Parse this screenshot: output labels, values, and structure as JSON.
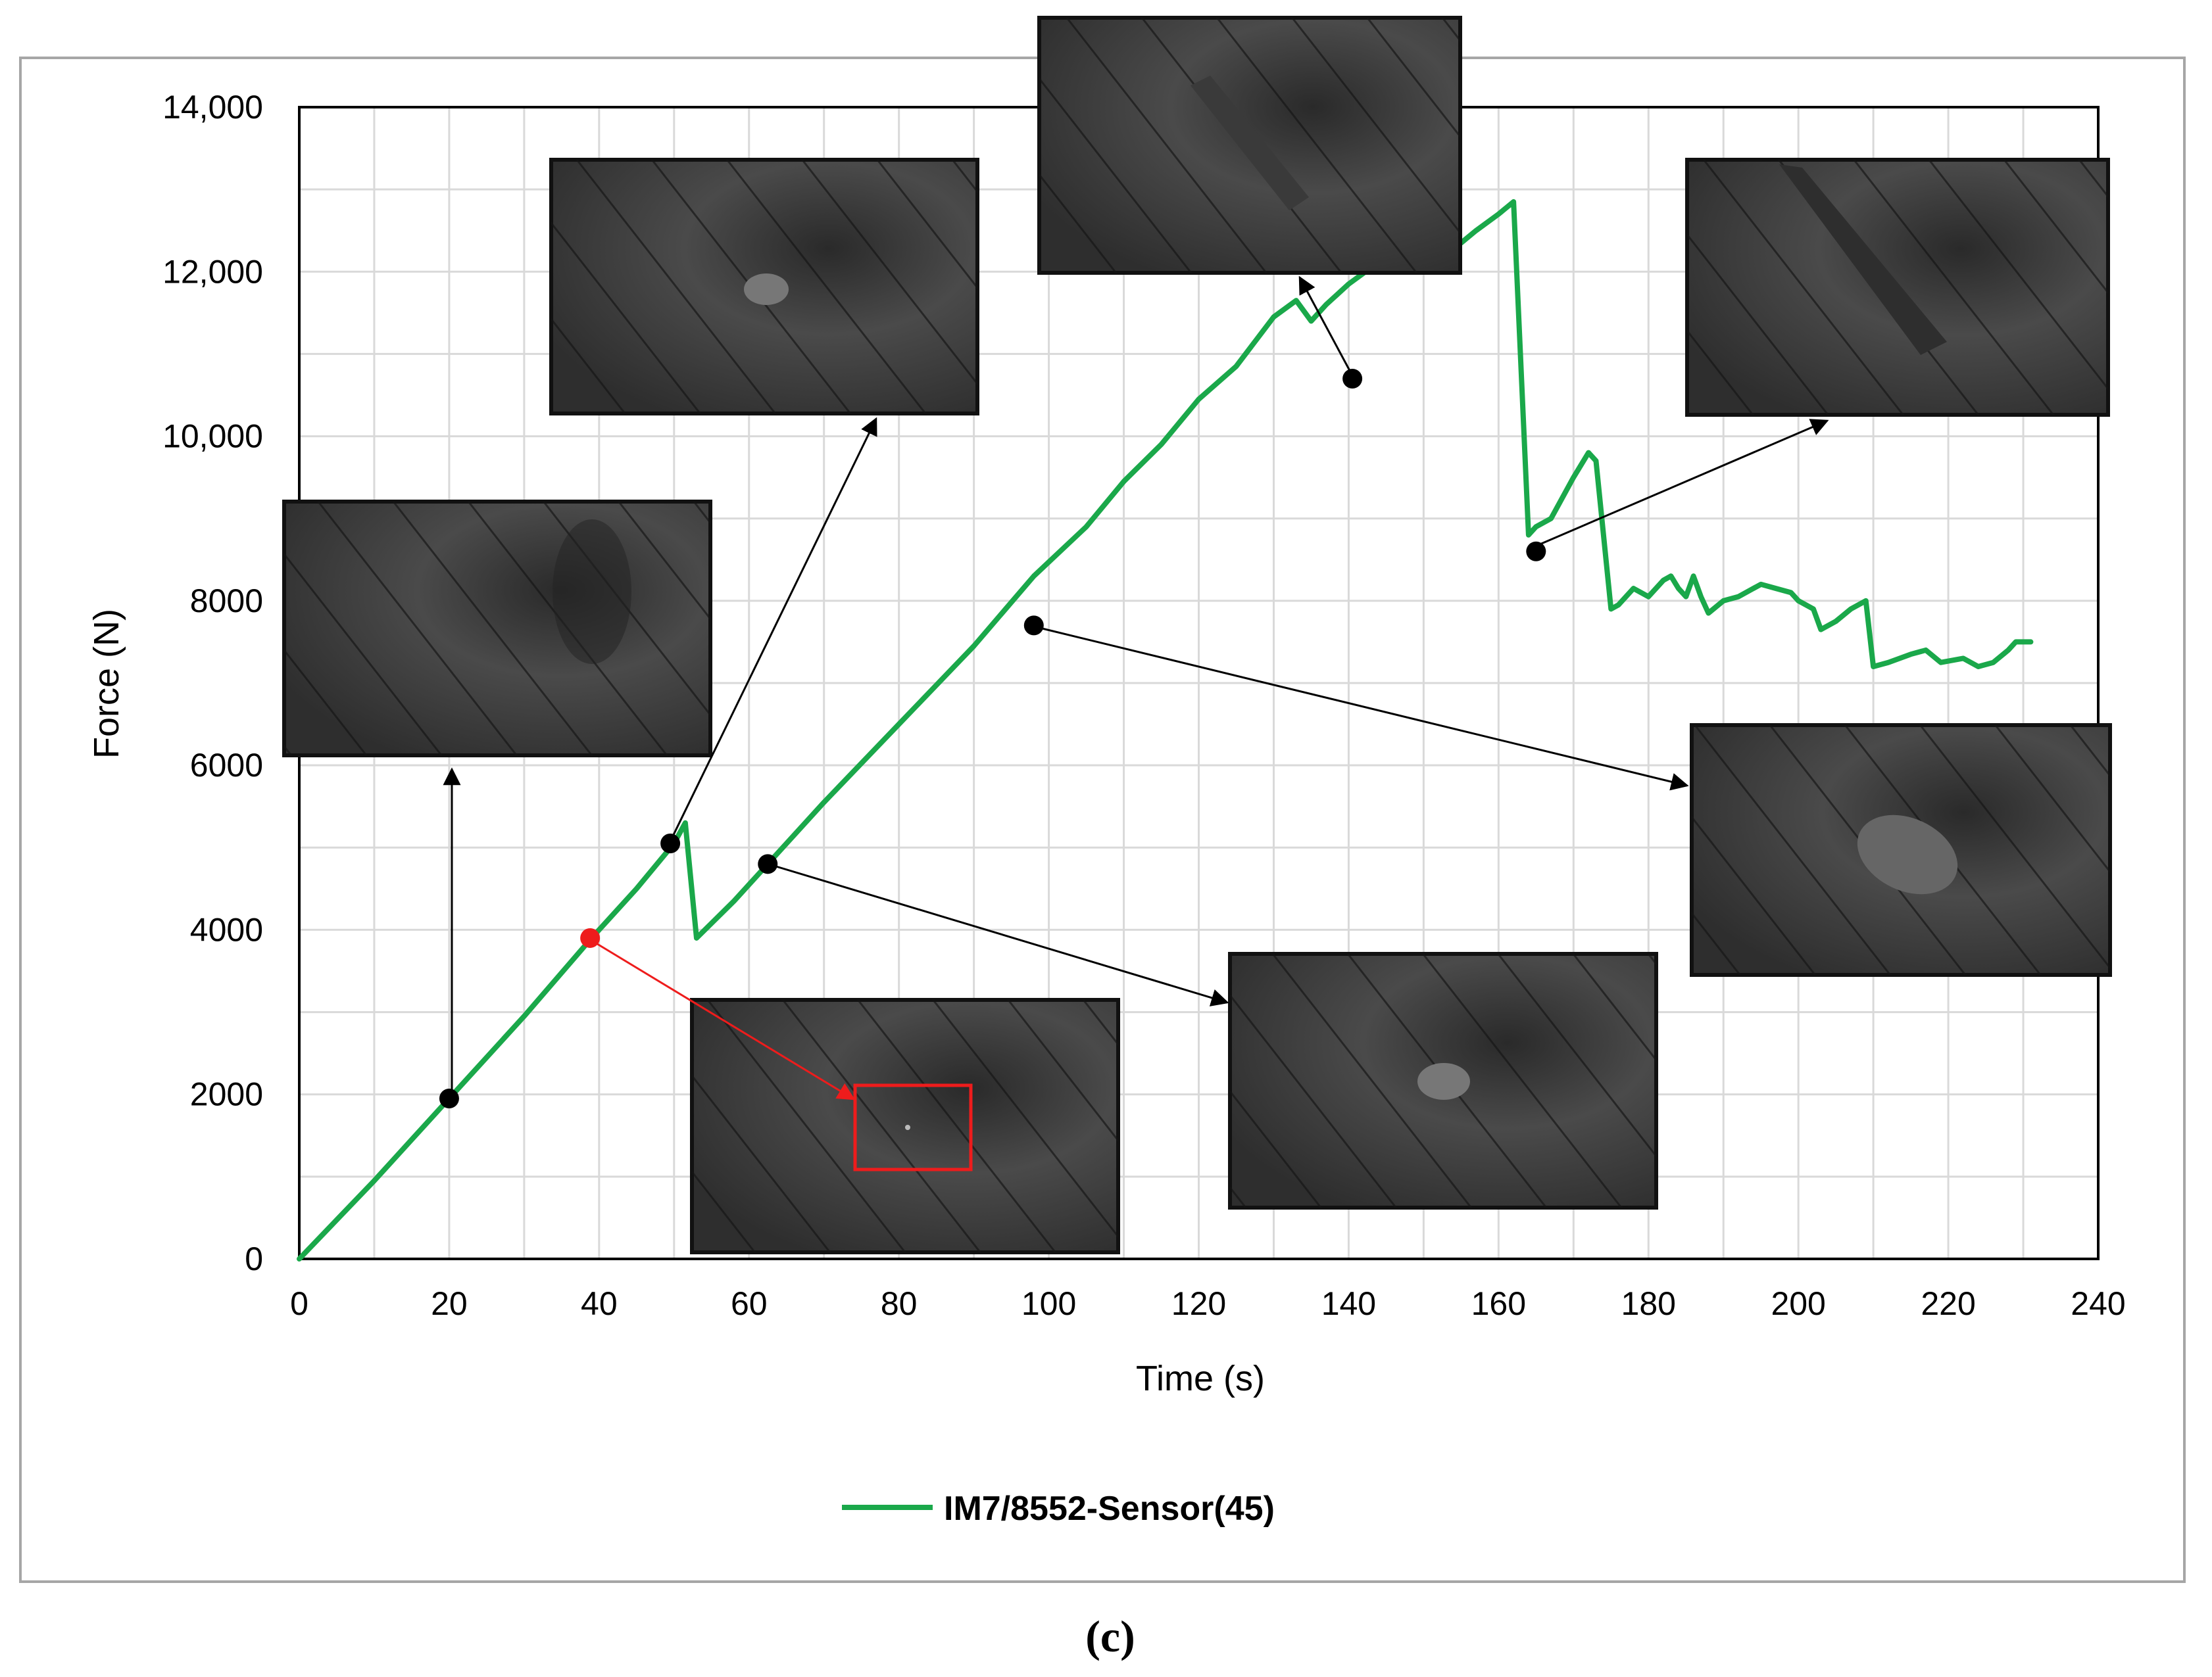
{
  "figure": {
    "panel_label": "(c)"
  },
  "colors": {
    "series": "#1aa84a",
    "marker": "#000000",
    "highlight": "#ee1c1c",
    "grid": "#d9d9d9",
    "axis": "#000000",
    "frame": "#a6a6a6",
    "photo_dark": "#1e1e1e",
    "photo_mid": "#3a3a3a"
  },
  "chart_data": {
    "type": "line",
    "title": "",
    "xlabel": "Time (s)",
    "ylabel": "Force (N)",
    "xlim": [
      0,
      240
    ],
    "ylim": [
      0,
      14000
    ],
    "x_ticks": [
      0,
      20,
      40,
      60,
      80,
      100,
      120,
      140,
      160,
      180,
      200,
      220,
      240
    ],
    "x_tick_labels": [
      "0",
      "20",
      "40",
      "60",
      "80",
      "100",
      "120",
      "140",
      "160",
      "180",
      "200",
      "220",
      "240"
    ],
    "y_ticks": [
      0,
      2000,
      4000,
      6000,
      8000,
      10000,
      12000,
      14000
    ],
    "y_tick_labels": [
      "0",
      "2000",
      "4000",
      "6000",
      "8000",
      "10,000",
      "12,000",
      "14,000"
    ],
    "grid": true,
    "legend_position": "bottom-center",
    "series": [
      {
        "name": "IM7/8552-Sensor(45)",
        "x": [
          0,
          10,
          20,
          30,
          39,
          45,
          50,
          51.5,
          53,
          58,
          62.5,
          70,
          80,
          90,
          98,
          105,
          110,
          115,
          120,
          125,
          130,
          133,
          135,
          137,
          140,
          143,
          145,
          150,
          153,
          155,
          157,
          160,
          162,
          164,
          165,
          167,
          170,
          172,
          173,
          175,
          176,
          178,
          180,
          182,
          183,
          184,
          185,
          186,
          187,
          188,
          190,
          192,
          195,
          197,
          199,
          200,
          202,
          203,
          205,
          207,
          209,
          210,
          212,
          215,
          217,
          219,
          222,
          224,
          226,
          228,
          229,
          231
        ],
        "y": [
          0,
          950,
          1950,
          2950,
          3900,
          4500,
          5050,
          5300,
          3900,
          4350,
          4800,
          5550,
          6500,
          7450,
          8300,
          8900,
          9450,
          9900,
          10450,
          10850,
          11450,
          11650,
          11400,
          11600,
          11850,
          12050,
          12050,
          12450,
          12600,
          12350,
          12500,
          12700,
          12850,
          8800,
          8900,
          9000,
          9500,
          9800,
          9700,
          7900,
          7950,
          8150,
          8050,
          8250,
          8300,
          8150,
          8050,
          8300,
          8050,
          7850,
          8000,
          8050,
          8200,
          8150,
          8100,
          8000,
          7900,
          7650,
          7750,
          7900,
          8000,
          7200,
          7250,
          7350,
          7400,
          7250,
          7300,
          7200,
          7250,
          7400,
          7500,
          7500
        ]
      }
    ],
    "markers": [
      {
        "x": 20,
        "y": 1950,
        "color": "black"
      },
      {
        "x": 38.8,
        "y": 3900,
        "color": "red"
      },
      {
        "x": 49.5,
        "y": 5050,
        "color": "black"
      },
      {
        "x": 62.5,
        "y": 4800,
        "color": "black"
      },
      {
        "x": 98,
        "y": 7700,
        "color": "black"
      },
      {
        "x": 140.5,
        "y": 10700,
        "color": "black"
      },
      {
        "x": 165,
        "y": 8600,
        "color": "black"
      }
    ]
  }
}
